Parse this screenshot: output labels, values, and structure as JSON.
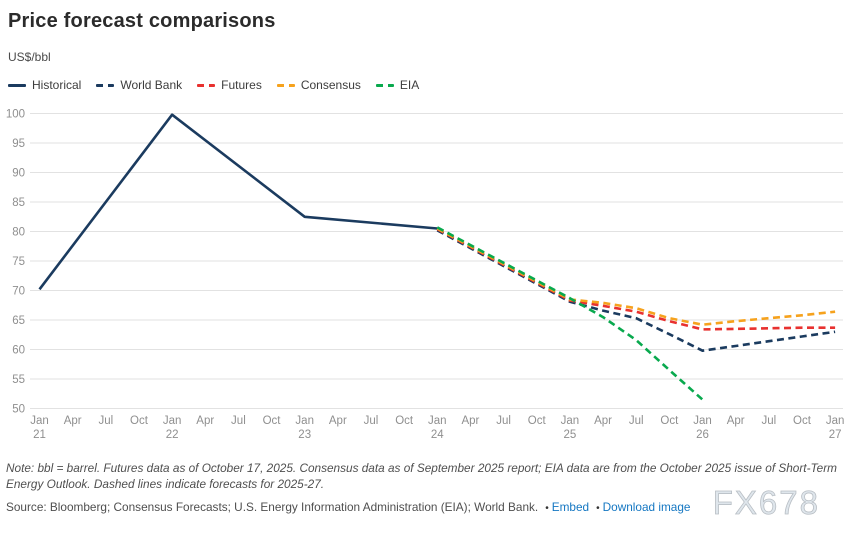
{
  "title": "Price forecast comparisons",
  "subtitle": "US$/bbl",
  "note": "Note: bbl = barrel. Futures data as of October 17, 2025. Consensus data as of September 2025 report; EIA data are from the October 2025 issue of Short-Term Energy Outlook. Dashed lines indicate forecasts for 2025-27.",
  "source": {
    "text": "Source: Bloomberg; Consensus Forecasts; U.S. Energy Information Administration (EIA); World Bank.",
    "links": [
      {
        "label": "Embed"
      },
      {
        "label": "Download image"
      }
    ],
    "link_color": "#1577c2"
  },
  "watermark": "FX678",
  "colors": {
    "navy": "#1b3b5f",
    "red": "#e8312f",
    "orange": "#f6a21d",
    "green": "#09a94e",
    "grid": "#e2e2e2",
    "axis_text": "#8f8f8f"
  },
  "chart_data": {
    "type": "line",
    "title": "Price forecast comparisons",
    "ylabel": "US$/bbl",
    "ylim": [
      50,
      100
    ],
    "ytick_step": 5,
    "yticks": [
      50,
      55,
      60,
      65,
      70,
      75,
      80,
      85,
      90,
      95,
      100
    ],
    "grid": "horizontal-only",
    "legend_position": "top-left",
    "x_unit": "quarter index, 0 = Jan 2021, 4 quarters per year, 24 = Jan 2027",
    "xticks": [
      {
        "month": "Jan",
        "year": "21"
      },
      {
        "month": "Apr"
      },
      {
        "month": "Jul"
      },
      {
        "month": "Oct"
      },
      {
        "month": "Jan",
        "year": "22"
      },
      {
        "month": "Apr"
      },
      {
        "month": "Jul"
      },
      {
        "month": "Oct"
      },
      {
        "month": "Jan",
        "year": "23"
      },
      {
        "month": "Apr"
      },
      {
        "month": "Jul"
      },
      {
        "month": "Oct"
      },
      {
        "month": "Jan",
        "year": "24"
      },
      {
        "month": "Apr"
      },
      {
        "month": "Jul"
      },
      {
        "month": "Oct"
      },
      {
        "month": "Jan",
        "year": "25"
      },
      {
        "month": "Apr"
      },
      {
        "month": "Jul"
      },
      {
        "month": "Oct"
      },
      {
        "month": "Jan",
        "year": "26"
      },
      {
        "month": "Apr"
      },
      {
        "month": "Jul"
      },
      {
        "month": "Oct"
      },
      {
        "month": "Jan",
        "year": "27"
      }
    ],
    "series": [
      {
        "name": "Historical",
        "color": "#1b3b5f",
        "dashed": false,
        "points": [
          [
            0,
            70.2
          ],
          [
            4,
            99.8
          ],
          [
            8,
            82.5
          ],
          [
            12,
            80.5
          ]
        ]
      },
      {
        "name": "World Bank",
        "color": "#1b3b5f",
        "dashed": true,
        "points": [
          [
            12,
            80.2
          ],
          [
            16,
            68.1
          ],
          [
            17,
            66.6
          ],
          [
            18,
            65.3
          ],
          [
            19,
            62.6
          ],
          [
            20,
            59.8
          ],
          [
            21,
            60.6
          ],
          [
            22,
            61.4
          ],
          [
            23,
            62.2
          ],
          [
            24,
            63.0
          ]
        ]
      },
      {
        "name": "Futures",
        "color": "#e8312f",
        "dashed": true,
        "points": [
          [
            12,
            80.4
          ],
          [
            16,
            68.3
          ],
          [
            17,
            67.4
          ],
          [
            18,
            66.4
          ],
          [
            19,
            64.8
          ],
          [
            20,
            63.4
          ],
          [
            21,
            63.5
          ],
          [
            22,
            63.6
          ],
          [
            23,
            63.7
          ],
          [
            24,
            63.7
          ]
        ]
      },
      {
        "name": "Consensus",
        "color": "#f6a21d",
        "dashed": true,
        "points": [
          [
            12,
            80.5
          ],
          [
            16,
            68.5
          ],
          [
            17,
            67.9
          ],
          [
            18,
            67.0
          ],
          [
            19,
            65.3
          ],
          [
            20,
            64.2
          ],
          [
            21,
            64.8
          ],
          [
            22,
            65.3
          ],
          [
            23,
            65.8
          ],
          [
            24,
            66.4
          ]
        ]
      },
      {
        "name": "EIA",
        "color": "#09a94e",
        "dashed": true,
        "points": [
          [
            12,
            80.7
          ],
          [
            16,
            68.7
          ],
          [
            17,
            65.5
          ],
          [
            18,
            61.6
          ],
          [
            19,
            56.5
          ],
          [
            20,
            51.5
          ]
        ]
      }
    ]
  }
}
